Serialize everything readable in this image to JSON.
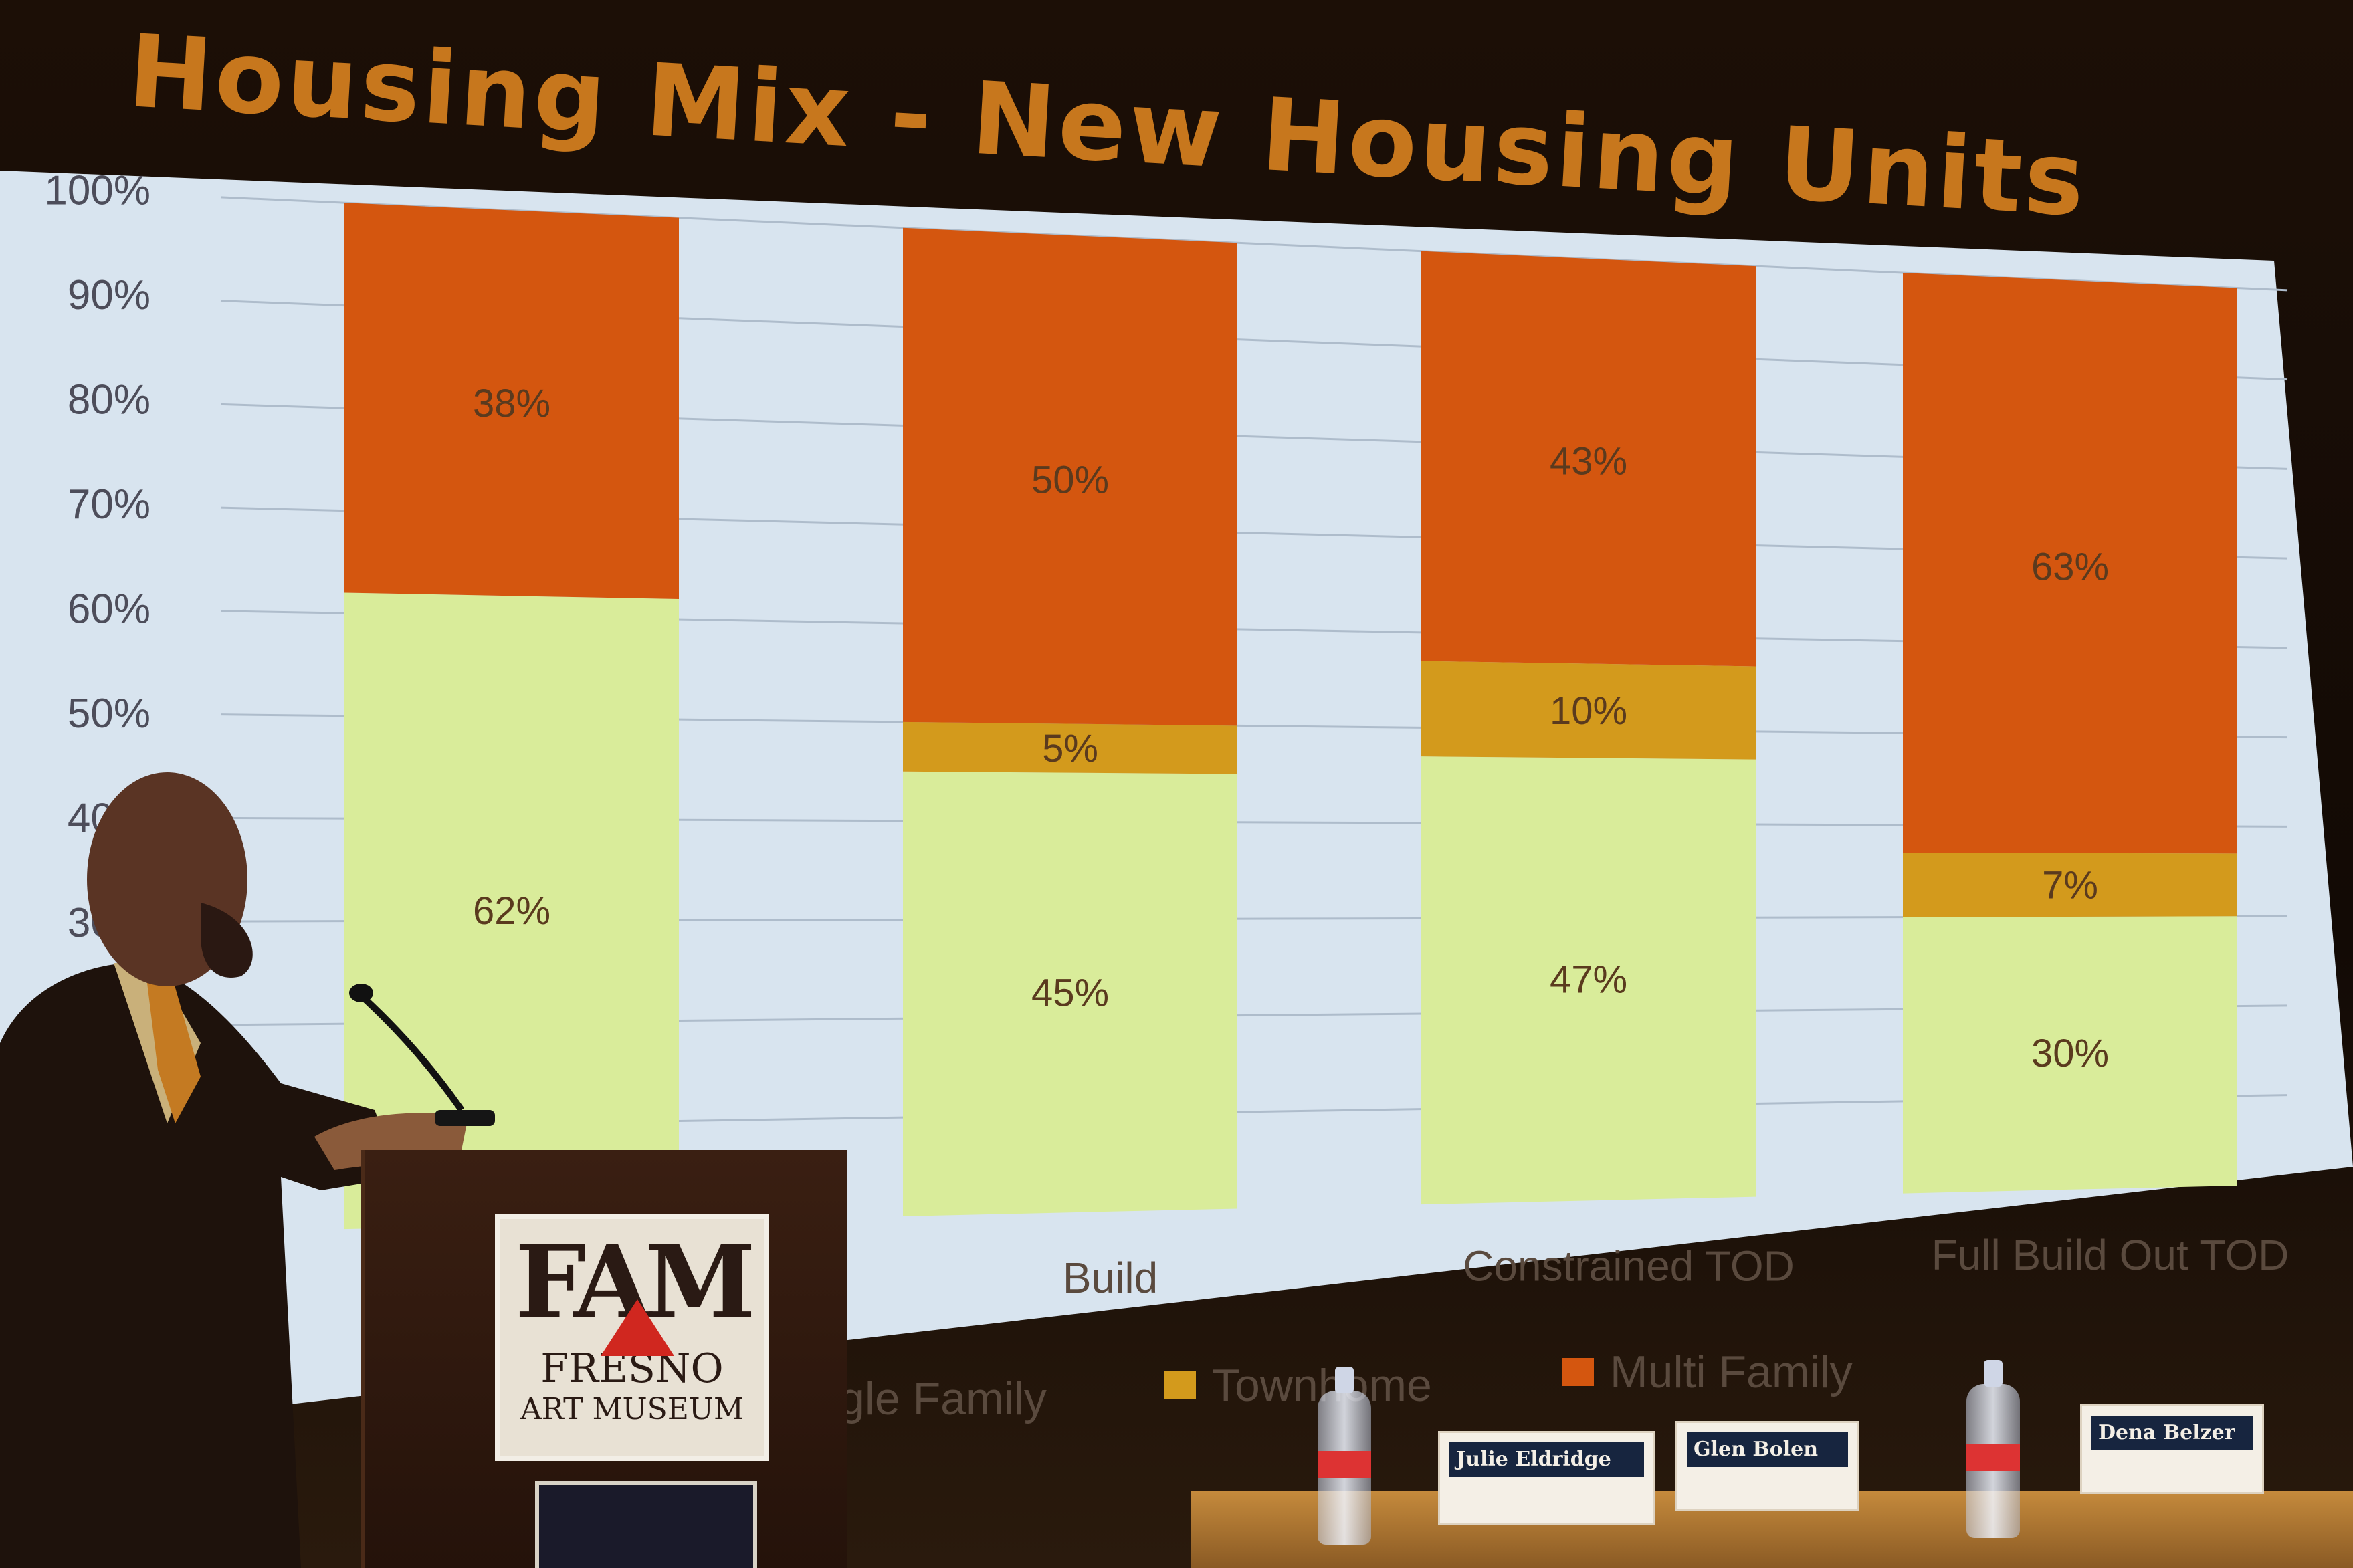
{
  "slide": {
    "title": "Housing Mix - New Housing Units"
  },
  "chart_data": {
    "type": "bar",
    "stacked": true,
    "title": "Housing Mix - New Housing Units",
    "categories": [
      "",
      "Build",
      "Constrained TOD",
      "Full Build Out TOD"
    ],
    "series": [
      {
        "name": "Single Family",
        "values": [
          62,
          45,
          47,
          30
        ],
        "labels": [
          "62%",
          "45%",
          "47%",
          "30%"
        ],
        "color": "#d9ec9a"
      },
      {
        "name": "Townhome",
        "values": [
          0,
          5,
          10,
          7
        ],
        "labels": [
          "",
          "5%",
          "10%",
          "7%"
        ],
        "color": "#d39a1c"
      },
      {
        "name": "Multi Family",
        "values": [
          38,
          50,
          43,
          63
        ],
        "labels": [
          "38%",
          "50%",
          "43%",
          "63%"
        ],
        "color": "#d4560f"
      }
    ],
    "yticks": [
      "100%",
      "90%",
      "80%",
      "70%",
      "60%",
      "50%",
      "40%",
      "30%"
    ],
    "ylim": [
      0,
      100
    ],
    "grid": true,
    "legend": {
      "position": "bottom",
      "items": [
        {
          "label": "gle Family",
          "color": "#d9ec9a"
        },
        {
          "label": "Townhome",
          "color": "#d39a1c"
        },
        {
          "label": "Multi Family",
          "color": "#d4560f"
        }
      ]
    }
  },
  "podium": {
    "logo_mark": "FAM",
    "logo_line1": "FRESNO",
    "logo_line2": "ART MUSEUM"
  },
  "nameplates": [
    {
      "name": "Julie Eldridge"
    },
    {
      "name": "Glen Bolen"
    },
    {
      "name": "Dena Belzer"
    }
  ]
}
